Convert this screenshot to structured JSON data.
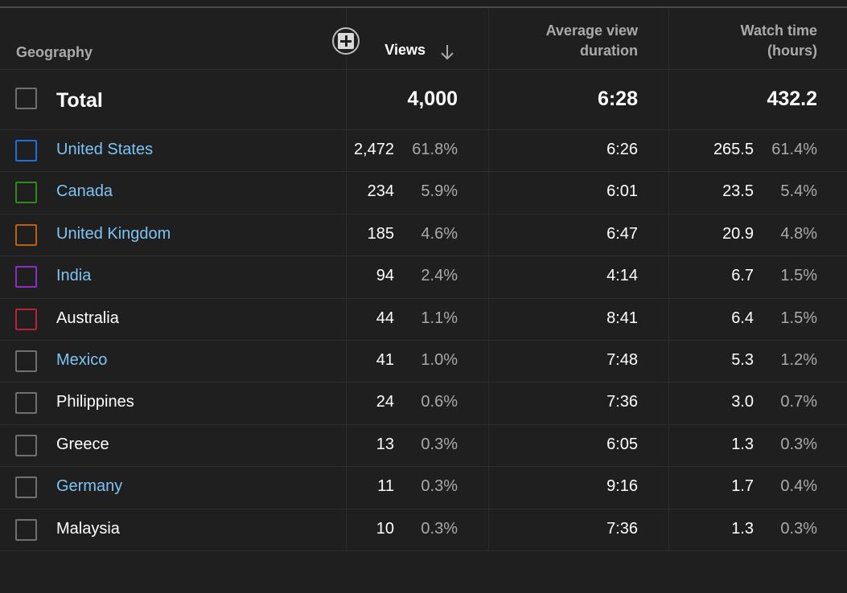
{
  "columns": {
    "geography": "Geography",
    "views": "Views",
    "avd_line1": "Average view",
    "avd_line2": "duration",
    "wt_line1": "Watch time",
    "wt_line2": "(hours)",
    "add_column_icon": "plus-box-icon",
    "sort_icon": "arrow-down-icon"
  },
  "total": {
    "label": "Total",
    "views": "4,000",
    "avg_view_duration": "6:28",
    "watch_time": "432.2"
  },
  "rows": [
    {
      "country": "United States",
      "views": "2,472",
      "views_pct": "61.8%",
      "avd": "6:26",
      "watch_time": "265.5",
      "wt_pct": "61.4%",
      "color": "#1e6fd9",
      "link": true
    },
    {
      "country": "Canada",
      "views": "234",
      "views_pct": "5.9%",
      "avd": "6:01",
      "watch_time": "23.5",
      "wt_pct": "5.4%",
      "color": "#2f8a1d",
      "link": true
    },
    {
      "country": "United Kingdom",
      "views": "185",
      "views_pct": "4.6%",
      "avd": "6:47",
      "watch_time": "20.9",
      "wt_pct": "4.8%",
      "color": "#b8620f",
      "link": true
    },
    {
      "country": "India",
      "views": "94",
      "views_pct": "2.4%",
      "avd": "4:14",
      "watch_time": "6.7",
      "wt_pct": "1.5%",
      "color": "#8a2fc2",
      "link": true
    },
    {
      "country": "Australia",
      "views": "44",
      "views_pct": "1.1%",
      "avd": "8:41",
      "watch_time": "6.4",
      "wt_pct": "1.5%",
      "color": "#b8233c",
      "link": false
    },
    {
      "country": "Mexico",
      "views": "41",
      "views_pct": "1.0%",
      "avd": "7:48",
      "watch_time": "5.3",
      "wt_pct": "1.2%",
      "color": "#707070",
      "link": true
    },
    {
      "country": "Philippines",
      "views": "24",
      "views_pct": "0.6%",
      "avd": "7:36",
      "watch_time": "3.0",
      "wt_pct": "0.7%",
      "color": "#707070",
      "link": false
    },
    {
      "country": "Greece",
      "views": "13",
      "views_pct": "0.3%",
      "avd": "6:05",
      "watch_time": "1.3",
      "wt_pct": "0.3%",
      "color": "#707070",
      "link": false
    },
    {
      "country": "Germany",
      "views": "11",
      "views_pct": "0.3%",
      "avd": "9:16",
      "watch_time": "1.7",
      "wt_pct": "0.4%",
      "color": "#707070",
      "link": true
    },
    {
      "country": "Malaysia",
      "views": "10",
      "views_pct": "0.3%",
      "avd": "7:36",
      "watch_time": "1.3",
      "wt_pct": "0.3%",
      "color": "#707070",
      "link": false
    }
  ],
  "colors": {
    "background": "#1f1f1f",
    "link": "#7dc4f4",
    "muted": "#aaaaaa"
  }
}
